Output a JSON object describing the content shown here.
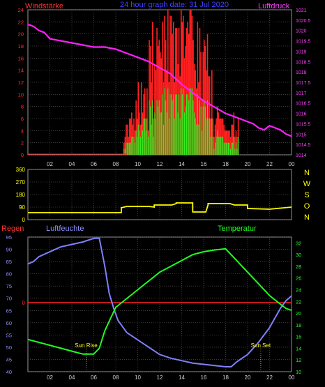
{
  "colors": {
    "bg": "#000000",
    "grid": "#606060",
    "frame": "#9a9a9a",
    "tick": "#cfcfcf",
    "wind_peak": "#ff2020",
    "wind_mean": "#20ff20",
    "pressure": "#ff20ff",
    "direction": "#ffff00",
    "rain": "#ff2020",
    "humidity": "#8080ff",
    "temperature": "#20ff20",
    "title": "#4040ff",
    "sun_label": "#ffff00",
    "left_axis": "#ff3030",
    "pressure_axis": "#ff40ff",
    "dir_axis": "#ffff00",
    "hum_axis": "#9090ff",
    "temp_axis": "#20ff20"
  },
  "header": {
    "title": "24 hour graph date: 31 Jul 2020",
    "wind_label": "Windstärke",
    "pressure_label": "Luftdruck"
  },
  "chart_data": [
    {
      "type": "area",
      "name": "wind-and-pressure",
      "x_ticks": [
        "02",
        "04",
        "06",
        "08",
        "10",
        "12",
        "14",
        "16",
        "18",
        "20",
        "22",
        "00"
      ],
      "x_range": [
        0,
        24
      ],
      "y_left_label": "Windstärke",
      "y_left_range": [
        0,
        24
      ],
      "y_left_ticks": [
        "0",
        "2",
        "4",
        "6",
        "8",
        "10",
        "12",
        "14",
        "16",
        "18",
        "20",
        "22",
        "24"
      ],
      "y_right_label": "Luftdruck",
      "y_right_range": [
        1014,
        1021
      ],
      "y_right_ticks": [
        "1014",
        "1014.5",
        "1015",
        "1015.5",
        "1016",
        "1016.5",
        "1017",
        "1017.5",
        "1018",
        "1018.5",
        "1019",
        "1019.5",
        "1020",
        "1020.5",
        "1021"
      ],
      "series": [
        {
          "name": "wind-peak",
          "hour_step": 0.1,
          "start_hour": 0,
          "values": [
            0,
            0,
            0,
            0,
            0,
            0,
            0,
            0,
            0,
            0,
            0,
            0,
            0,
            0,
            0,
            0,
            0,
            0,
            0,
            0,
            0,
            0,
            0,
            0,
            0,
            0,
            0,
            0,
            0,
            0,
            0,
            0,
            0,
            0,
            0,
            0,
            0,
            0,
            0,
            0,
            0,
            0,
            0,
            0,
            0,
            0,
            0,
            0,
            0,
            0,
            0,
            0,
            0,
            0,
            0,
            0,
            0,
            0,
            0,
            0,
            0,
            0,
            0,
            0,
            0,
            0,
            0,
            0,
            0,
            0,
            0,
            0,
            0,
            0,
            0,
            0,
            0,
            0,
            0,
            0,
            0,
            0,
            0,
            0,
            0,
            0,
            0,
            2,
            3,
            5,
            5,
            3,
            6,
            6,
            7,
            5,
            6,
            4,
            9,
            6,
            12,
            7,
            5,
            12,
            7,
            10,
            11,
            6,
            11,
            4,
            19,
            18,
            12,
            22,
            6,
            15,
            14,
            21,
            18,
            19,
            17,
            16,
            22,
            12,
            23,
            19,
            14,
            24,
            12,
            23,
            23,
            20,
            22,
            12,
            21,
            21,
            15,
            21,
            13,
            24,
            22,
            23,
            16,
            18,
            21,
            22,
            20,
            24,
            24,
            23,
            19,
            15,
            14,
            11,
            22,
            12,
            21,
            17,
            9,
            17,
            19,
            18,
            14,
            20,
            13,
            13,
            6,
            14,
            6,
            3,
            5,
            6,
            8,
            7,
            6,
            6,
            6,
            6,
            5,
            4,
            4,
            4,
            4,
            4,
            3,
            5,
            5,
            7,
            3,
            4,
            3,
            6
          ]
        },
        {
          "name": "wind-mean",
          "hour_step": 0.1,
          "start_hour": 0,
          "values": [
            0,
            0,
            0,
            0,
            0,
            0,
            0,
            0,
            0,
            0,
            0,
            0,
            0,
            0,
            0,
            0,
            0,
            0,
            0,
            0,
            0,
            0,
            0,
            0,
            0,
            0,
            0,
            0,
            0,
            0,
            0,
            0,
            0,
            0,
            0,
            0,
            0,
            0,
            0,
            0,
            0,
            0,
            0,
            0,
            0,
            0,
            0,
            0,
            0,
            0,
            0,
            0,
            0,
            0,
            0,
            0,
            0,
            0,
            0,
            0,
            0,
            0,
            0,
            0,
            0,
            0,
            0,
            0,
            0,
            0,
            0,
            0,
            0,
            0,
            0,
            0,
            0,
            0,
            0,
            0,
            0,
            0,
            0,
            0,
            0,
            0,
            0,
            1,
            1,
            2,
            2,
            2,
            2,
            2,
            3,
            3,
            3,
            2,
            4,
            3,
            5,
            4,
            3,
            5,
            4,
            6,
            6,
            4,
            6,
            3,
            9,
            8,
            5,
            9,
            3,
            7,
            6,
            9,
            8,
            9,
            7,
            7,
            10,
            5,
            11,
            9,
            7,
            11,
            6,
            10,
            10,
            9,
            10,
            6,
            10,
            10,
            7,
            10,
            6,
            11,
            10,
            11,
            7,
            8,
            10,
            10,
            9,
            11,
            11,
            11,
            9,
            7,
            6,
            5,
            10,
            5,
            9,
            8,
            4,
            8,
            9,
            8,
            6,
            9,
            6,
            6,
            3,
            6,
            3,
            1,
            2,
            3,
            4,
            3,
            3,
            3,
            3,
            3,
            2,
            2,
            2,
            2,
            2,
            2,
            1,
            2,
            2,
            3,
            1,
            2,
            1,
            3
          ]
        },
        {
          "name": "pressure",
          "hours": [
            0,
            0.5,
            1,
            1.5,
            2,
            3,
            4,
            5,
            6,
            7,
            8,
            9,
            10,
            11,
            12,
            13,
            14,
            15,
            16,
            17,
            18,
            19,
            20,
            20.5,
            21,
            21.5,
            22,
            22.5,
            23,
            23.5,
            24
          ],
          "values": [
            1020.3,
            1020.2,
            1020,
            1019.9,
            1019.6,
            1019.5,
            1019.4,
            1019.3,
            1019.2,
            1019.2,
            1019.1,
            1018.9,
            1018.7,
            1018.5,
            1018.2,
            1017.9,
            1017.4,
            1017,
            1016.6,
            1016.3,
            1016,
            1015.8,
            1015.6,
            1015.5,
            1015.3,
            1015.2,
            1015.4,
            1015.3,
            1015.2,
            1015,
            1014.9
          ]
        }
      ]
    },
    {
      "type": "line",
      "name": "wind-direction",
      "x_range": [
        0,
        24
      ],
      "y_range": [
        0,
        360
      ],
      "y_ticks": [
        "0",
        "90",
        "180",
        "270",
        "360"
      ],
      "compass_labels": [
        "N",
        "W",
        "S",
        "O",
        "N"
      ],
      "series": [
        {
          "name": "direction",
          "hours": [
            0,
            8.5,
            8.5,
            9,
            11,
            11.5,
            11.5,
            13.1,
            13.5,
            13.5,
            15,
            15,
            16.2,
            16.4,
            16.4,
            18.4,
            18.8,
            20,
            20,
            22,
            24
          ],
          "values": [
            50,
            50,
            85,
            95,
            95,
            90,
            105,
            105,
            115,
            120,
            120,
            55,
            55,
            105,
            115,
            115,
            105,
            105,
            80,
            75,
            90
          ]
        }
      ]
    },
    {
      "type": "line",
      "name": "rain-humidity-temperature",
      "labels": {
        "rain": "Regen",
        "humidity": "Luftfeuchte",
        "temperature": "Temperatur"
      },
      "x_ticks": [
        "02",
        "04",
        "06",
        "08",
        "10",
        "12",
        "14",
        "16",
        "18",
        "20",
        "22",
        "00"
      ],
      "x_range": [
        0,
        24
      ],
      "humidity_range": [
        40,
        95
      ],
      "humidity_ticks": [
        "40",
        "45",
        "50",
        "55",
        "60",
        "65",
        "70",
        "75",
        "80",
        "85",
        "90",
        "95"
      ],
      "temperature_range": [
        10,
        33
      ],
      "temperature_ticks": [
        "10",
        "12",
        "14",
        "16",
        "18",
        "20",
        "22",
        "24",
        "26",
        "28",
        "30",
        "32"
      ],
      "rain_tick": "0",
      "rain_value": 0,
      "series": [
        {
          "name": "humidity",
          "hours": [
            0,
            0.5,
            1,
            2,
            3,
            4,
            5,
            6,
            6.5,
            7,
            7.4,
            7.8,
            8.2,
            9,
            10,
            11,
            12,
            13,
            14,
            15,
            16,
            17,
            18,
            18.5,
            19,
            20,
            21,
            22,
            22.5,
            23,
            23.5,
            24
          ],
          "values": [
            84,
            85,
            87,
            89,
            91,
            92,
            93,
            94.5,
            94.5,
            83,
            72,
            66,
            61,
            56,
            53,
            50,
            47,
            45.5,
            44.5,
            43.5,
            43,
            42.5,
            42,
            42,
            44,
            47,
            52,
            58,
            62,
            66,
            69,
            71
          ]
        },
        {
          "name": "temperature",
          "hours": [
            0,
            1,
            2,
            3,
            4,
            5,
            6,
            6.5,
            7,
            7.5,
            8,
            9,
            10,
            11,
            12,
            13,
            14,
            15,
            16,
            17,
            18,
            18.5,
            19,
            20,
            21,
            22,
            23,
            23.5,
            24
          ],
          "values": [
            15.5,
            15,
            14.5,
            14,
            13.5,
            13,
            13,
            14,
            17,
            19,
            21,
            22.5,
            24,
            25.5,
            27,
            28,
            29,
            30,
            30.5,
            30.8,
            31,
            30,
            29,
            27,
            25,
            23,
            21.5,
            20.8,
            20.5
          ]
        }
      ],
      "annotations": [
        {
          "text": "Sun Rise",
          "hour": 5.3
        },
        {
          "text": "Sun Set",
          "hour": 21.2
        }
      ]
    }
  ]
}
